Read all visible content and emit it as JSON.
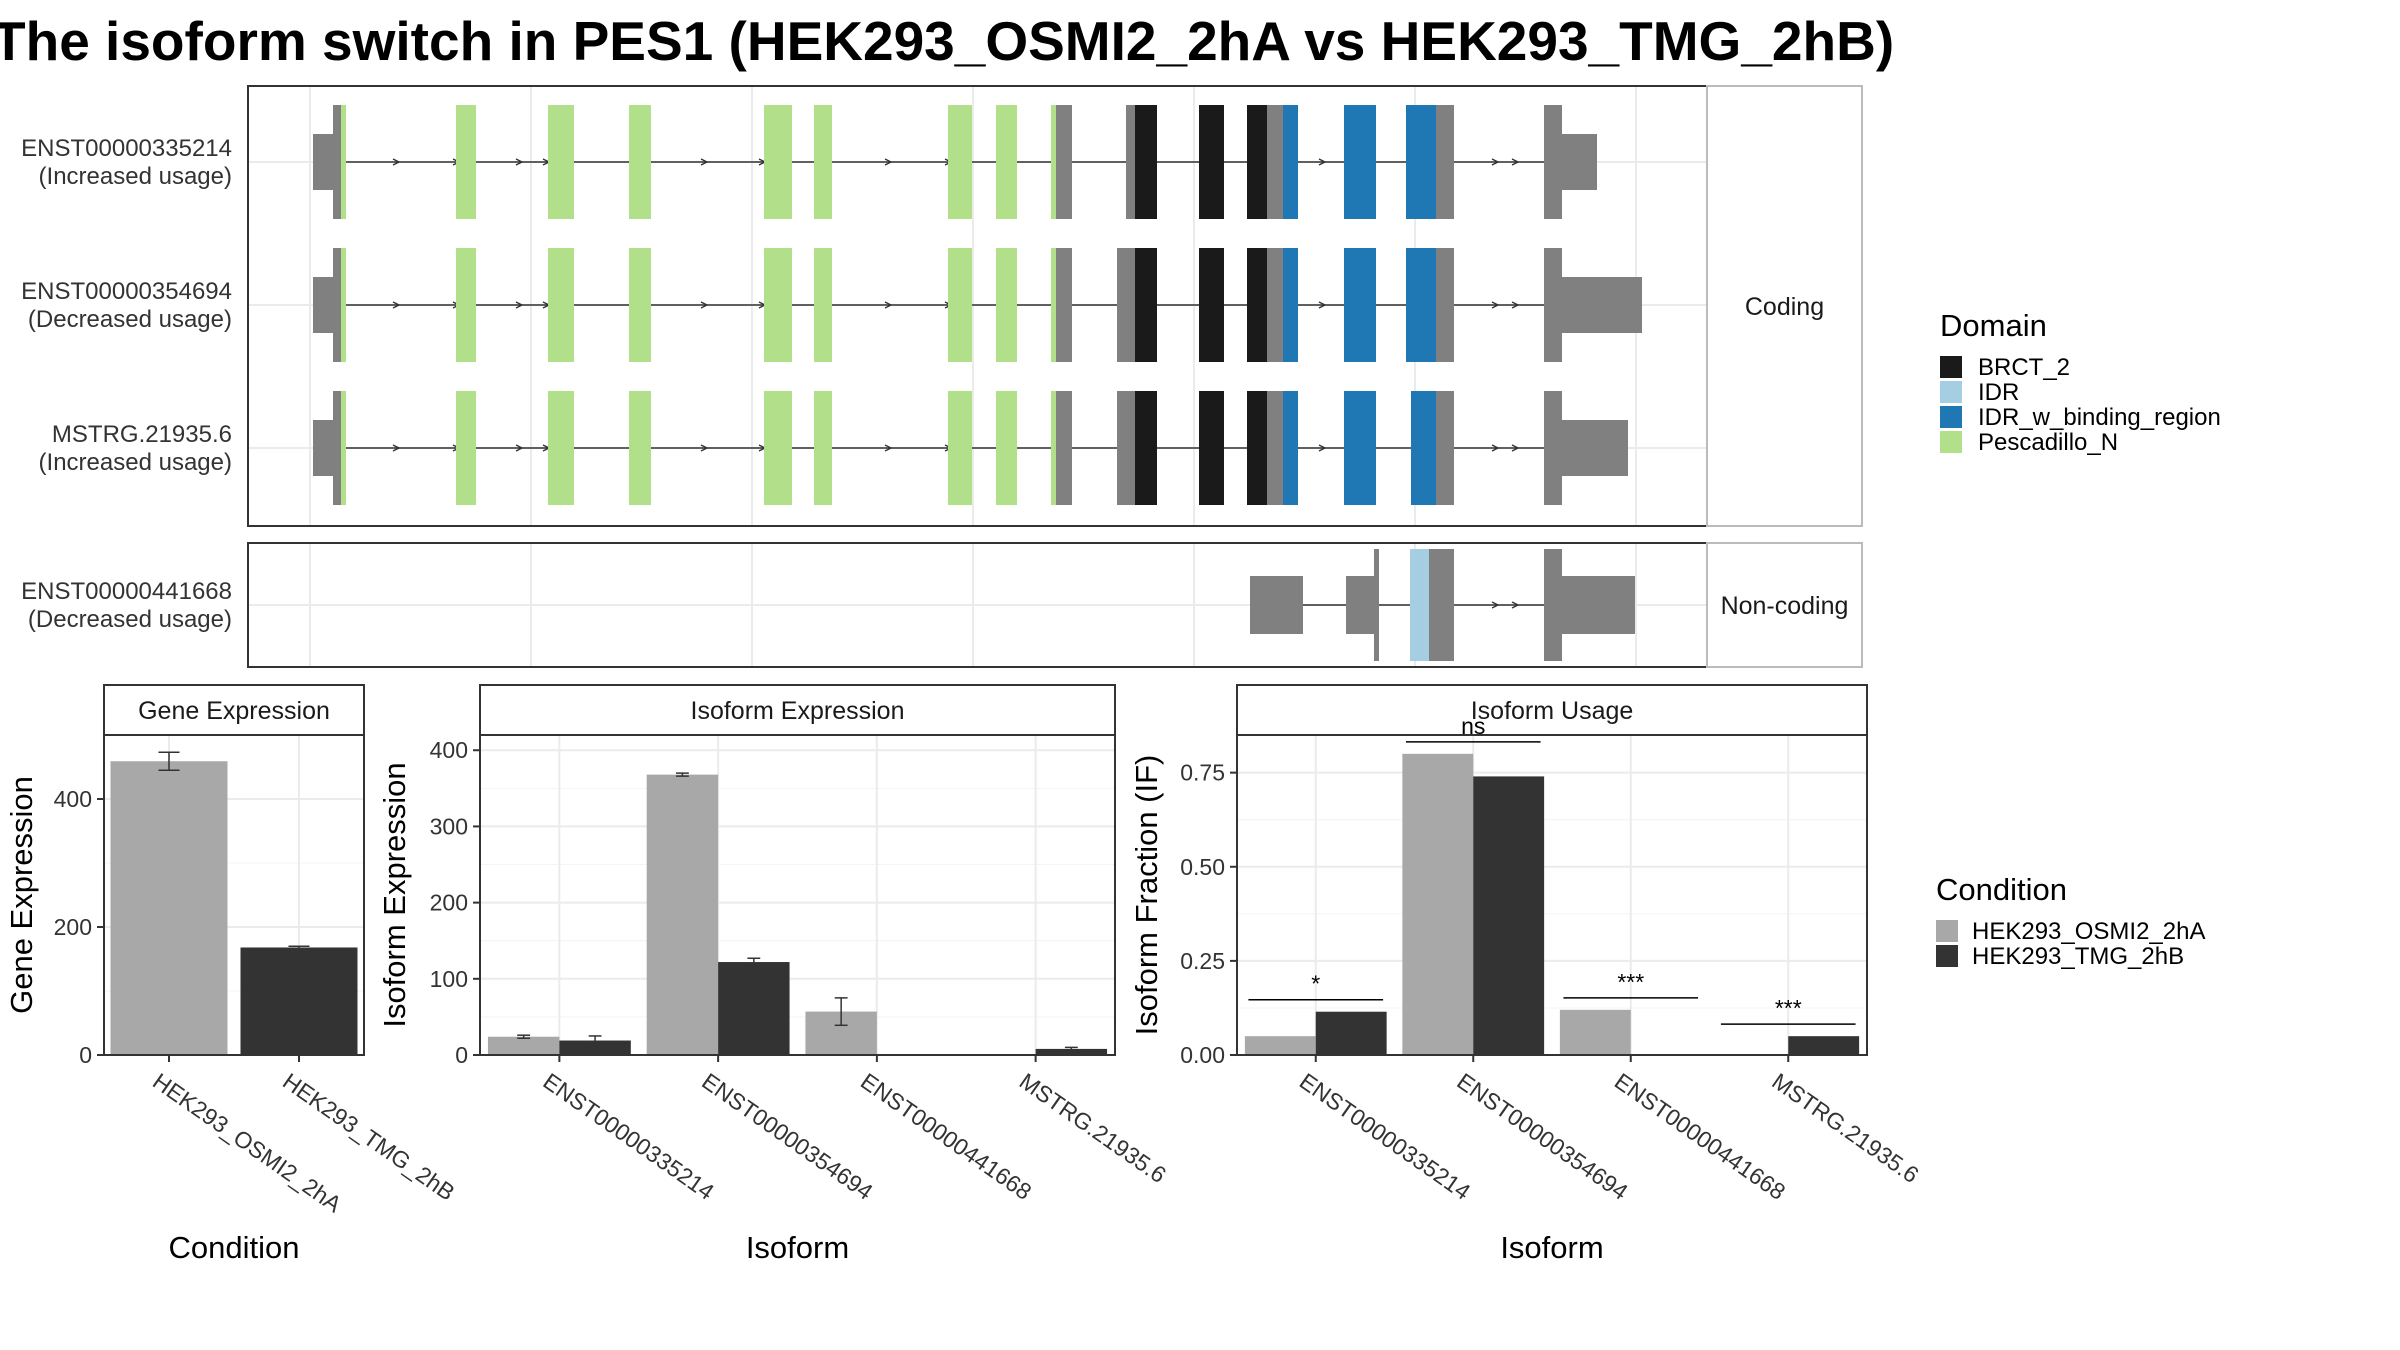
{
  "title": "The isoform switch in PES1 (HEK293_OSMI2_2hA vs HEK293_TMG_2hB)",
  "colors": {
    "BRCT_2": "#1a1a1a",
    "IDR": "#a6cee3",
    "IDR_w_binding_region": "#1f78b4",
    "Pescadillo_N": "#b2df8a",
    "exon": "#808080",
    "cond_A": "#a8a8a8",
    "cond_B": "#333333",
    "intron": "#333333"
  },
  "transcripts": {
    "facets": [
      "Coding",
      "Non-coding"
    ],
    "rows": [
      {
        "id": "ENST00000335214",
        "usage": "(Increased usage)",
        "facet": "Coding"
      },
      {
        "id": "ENST00000354694",
        "usage": "(Decreased usage)",
        "facet": "Coding"
      },
      {
        "id": "MSTRG.21935.6",
        "usage": "(Increased usage)",
        "facet": "Coding"
      },
      {
        "id": "ENST00000441668",
        "usage": "(Decreased usage)",
        "facet": "Non-coding"
      }
    ]
  },
  "legend_domain": {
    "title": "Domain",
    "items": [
      "BRCT_2",
      "IDR",
      "IDR_w_binding_region",
      "Pescadillo_N"
    ]
  },
  "legend_condition": {
    "title": "Condition",
    "items": [
      "HEK293_OSMI2_2hA",
      "HEK293_TMG_2hB"
    ]
  },
  "chart_data": [
    {
      "type": "bar",
      "title": "Gene Expression",
      "xlabel": "Condition",
      "ylabel": "Gene Expression",
      "categories": [
        "HEK293_OSMI2_2hA",
        "HEK293_TMG_2hB"
      ],
      "values": [
        459,
        168
      ],
      "errors": [
        14,
        2
      ],
      "ylim": [
        0,
        500
      ],
      "yticks": [
        0,
        200,
        400
      ]
    },
    {
      "type": "bar",
      "title": "Isoform Expression",
      "xlabel": "Isoform",
      "ylabel": "Isoform Expression",
      "categories": [
        "ENST00000335214",
        "ENST00000354694",
        "ENST00000441668",
        "MSTRG.21935.6"
      ],
      "series": [
        {
          "name": "HEK293_OSMI2_2hA",
          "values": [
            24,
            368,
            57,
            0
          ],
          "errors": [
            2,
            2,
            18,
            0
          ]
        },
        {
          "name": "HEK293_TMG_2hB",
          "values": [
            19,
            122,
            0,
            8
          ],
          "errors": [
            6,
            5,
            0,
            2
          ]
        }
      ],
      "ylim": [
        0,
        420
      ],
      "yticks": [
        0,
        100,
        200,
        300,
        400
      ]
    },
    {
      "type": "bar",
      "title": "Isoform Usage",
      "xlabel": "Isoform",
      "ylabel": "Isoform Fraction (IF)",
      "categories": [
        "ENST00000335214",
        "ENST00000354694",
        "ENST00000441668",
        "MSTRG.21935.6"
      ],
      "series": [
        {
          "name": "HEK293_OSMI2_2hA",
          "values": [
            0.05,
            0.8,
            0.12,
            0.0
          ]
        },
        {
          "name": "HEK293_TMG_2hB",
          "values": [
            0.115,
            0.74,
            0.0,
            0.05
          ]
        }
      ],
      "significance": [
        "*",
        "ns",
        "***",
        "***"
      ],
      "ylim": [
        0,
        0.85
      ],
      "yticks": [
        "0.00",
        "0.25",
        "0.50",
        "0.75"
      ]
    }
  ]
}
